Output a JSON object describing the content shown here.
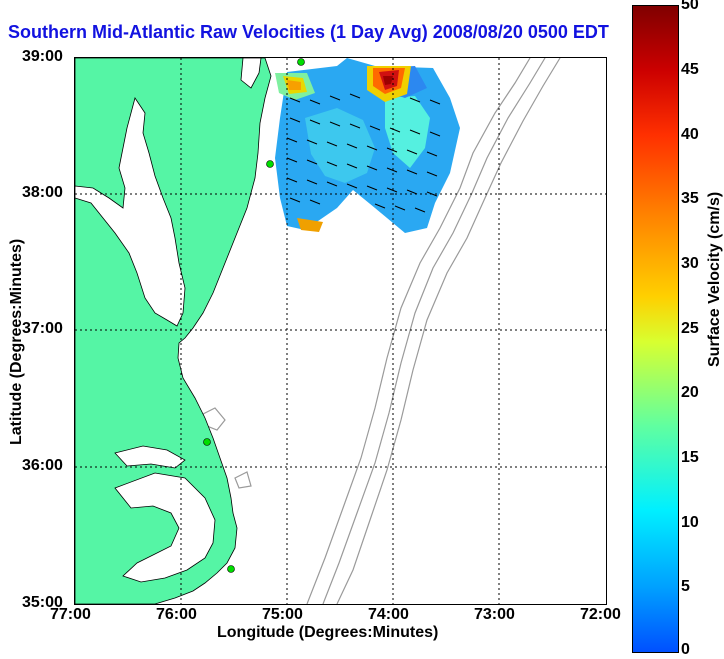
{
  "title": "Southern Mid-Atlantic Raw Velocities (1 Day Avg) 2008/08/20 0500 EDT",
  "axes": {
    "xlabel": "Longitude (Degrees:Minutes)",
    "ylabel": "Latitude (Degrees:Minutes)",
    "xticks": [
      "77:00",
      "76:00",
      "75:00",
      "74:00",
      "73:00",
      "72:00"
    ],
    "yticks": [
      "39:00",
      "38:00",
      "37:00",
      "36:00",
      "35:00"
    ]
  },
  "colorbar": {
    "label": "Surface Velocity (cm/s)",
    "ticks": [
      "50",
      "45",
      "40",
      "35",
      "30",
      "25",
      "20",
      "15",
      "10",
      "5",
      "0"
    ],
    "range": [
      0,
      50
    ]
  },
  "colors": {
    "land": "#55f5a5",
    "coast": "#000000",
    "isobath": "#9a9a9a",
    "title": "#1212e0",
    "station": "#00dd00"
  }
}
